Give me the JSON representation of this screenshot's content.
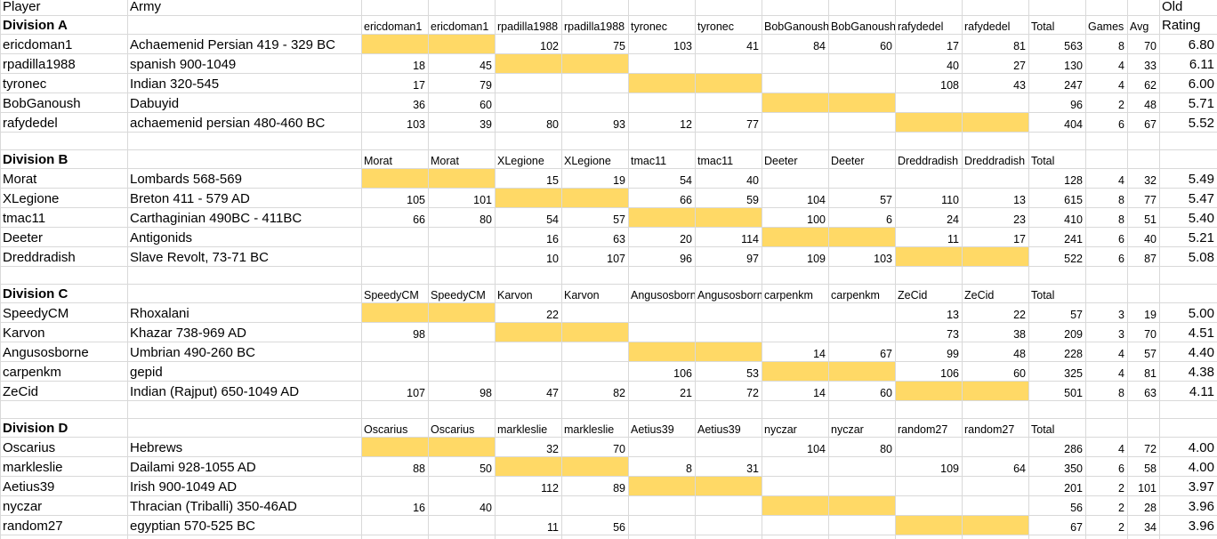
{
  "header": {
    "player": "Player",
    "army": "Army",
    "old": "Old",
    "rating": "Rating"
  },
  "divisions": [
    {
      "name": "Division A",
      "opponents": [
        "ericdoman1",
        "ericdoman1",
        "rpadilla1988",
        "rpadilla1988",
        "tyronec",
        "tyronec",
        "BobGanoush",
        "BobGanoush",
        "rafydedel",
        "rafydedel"
      ],
      "total_header": "Total",
      "games_header": "Games",
      "avg_header": "Avg",
      "players": [
        {
          "name": "ericdoman1",
          "army": "Achaemenid Persian 419 - 329 BC",
          "cells": [
            null,
            null,
            102,
            75,
            103,
            41,
            84,
            60,
            17,
            81
          ],
          "total": 563,
          "games": 8,
          "avg": 70,
          "rating": "6.80"
        },
        {
          "name": "rpadilla1988",
          "army": "spanish 900-1049",
          "cells": [
            18,
            45,
            null,
            null,
            null,
            null,
            null,
            null,
            40,
            27
          ],
          "total": 130,
          "games": 4,
          "avg": 33,
          "rating": "6.11"
        },
        {
          "name": "tyronec",
          "army": "Indian 320-545",
          "cells": [
            17,
            79,
            null,
            null,
            null,
            null,
            null,
            null,
            108,
            43
          ],
          "total": 247,
          "games": 4,
          "avg": 62,
          "rating": "6.00"
        },
        {
          "name": "BobGanoush",
          "army": "Dabuyid",
          "cells": [
            36,
            60,
            null,
            null,
            null,
            null,
            null,
            null,
            null,
            null
          ],
          "total": 96,
          "games": 2,
          "avg": 48,
          "rating": "5.71"
        },
        {
          "name": "rafydedel",
          "army": "achaemenid persian 480-460 BC",
          "cells": [
            103,
            39,
            80,
            93,
            12,
            77,
            null,
            null,
            null,
            null
          ],
          "total": 404,
          "games": 6,
          "avg": 67,
          "rating": "5.52"
        }
      ]
    },
    {
      "name": "Division B",
      "opponents": [
        "Morat",
        "Morat",
        "XLegione",
        "XLegione",
        "tmac11",
        "tmac11",
        "Deeter",
        "Deeter",
        "Dreddradish",
        "Dreddradish"
      ],
      "total_header": "Total",
      "players": [
        {
          "name": "Morat",
          "army": "Lombards 568-569",
          "cells": [
            null,
            null,
            15,
            19,
            54,
            40,
            null,
            null,
            null,
            null
          ],
          "total": 128,
          "games": 4,
          "avg": 32,
          "rating": "5.49"
        },
        {
          "name": "XLegione",
          "army": "Breton 411 - 579 AD",
          "cells": [
            105,
            101,
            null,
            null,
            66,
            59,
            104,
            57,
            110,
            13
          ],
          "total": 615,
          "games": 8,
          "avg": 77,
          "rating": "5.47"
        },
        {
          "name": "tmac11",
          "army": "Carthaginian 490BC - 411BC",
          "cells": [
            66,
            80,
            54,
            57,
            null,
            null,
            100,
            6,
            24,
            23
          ],
          "total": 410,
          "games": 8,
          "avg": 51,
          "rating": "5.40"
        },
        {
          "name": "Deeter",
          "army": "Antigonids",
          "cells": [
            null,
            null,
            16,
            63,
            20,
            114,
            null,
            null,
            11,
            17
          ],
          "total": 241,
          "games": 6,
          "avg": 40,
          "rating": "5.21"
        },
        {
          "name": "Dreddradish",
          "army": "Slave Revolt, 73-71 BC",
          "cells": [
            null,
            null,
            10,
            107,
            96,
            97,
            109,
            103,
            null,
            null
          ],
          "total": 522,
          "games": 6,
          "avg": 87,
          "rating": "5.08"
        }
      ]
    },
    {
      "name": "Division C",
      "opponents": [
        "SpeedyCM",
        "SpeedyCM",
        "Karvon",
        "Karvon",
        "Angusosborne",
        "Angusosborne",
        "carpenkm",
        "carpenkm",
        "ZeCid",
        "ZeCid"
      ],
      "total_header": "Total",
      "players": [
        {
          "name": "SpeedyCM",
          "army": "Rhoxalani",
          "cells": [
            null,
            null,
            22,
            null,
            null,
            null,
            null,
            null,
            13,
            22
          ],
          "total": 57,
          "games": 3,
          "avg": 19,
          "rating": "5.00"
        },
        {
          "name": "Karvon",
          "army": "Khazar 738-969 AD",
          "cells": [
            98,
            null,
            null,
            null,
            null,
            null,
            null,
            null,
            73,
            38
          ],
          "total": 209,
          "games": 3,
          "avg": 70,
          "rating": "4.51"
        },
        {
          "name": "Angusosborne",
          "army": "Umbrian 490-260 BC",
          "cells": [
            null,
            null,
            null,
            null,
            null,
            null,
            14,
            67,
            99,
            48
          ],
          "total": 228,
          "games": 4,
          "avg": 57,
          "rating": "4.40"
        },
        {
          "name": "carpenkm",
          "army": "gepid",
          "cells": [
            null,
            null,
            null,
            null,
            106,
            53,
            null,
            null,
            106,
            60
          ],
          "total": 325,
          "games": 4,
          "avg": 81,
          "rating": "4.38"
        },
        {
          "name": "ZeCid",
          "army": "Indian (Rajput) 650-1049 AD",
          "cells": [
            107,
            98,
            47,
            82,
            21,
            72,
            14,
            60,
            null,
            null
          ],
          "total": 501,
          "games": 8,
          "avg": 63,
          "rating": "4.11"
        }
      ]
    },
    {
      "name": "Division D",
      "opponents": [
        "Oscarius",
        "Oscarius",
        "markleslie",
        "markleslie",
        "Aetius39",
        "Aetius39",
        "nyczar",
        "nyczar",
        "random27",
        "random27"
      ],
      "total_header": "Total",
      "players": [
        {
          "name": "Oscarius",
          "army": "Hebrews",
          "cells": [
            null,
            null,
            32,
            70,
            null,
            null,
            104,
            80,
            null,
            null
          ],
          "total": 286,
          "games": 4,
          "avg": 72,
          "rating": "4.00"
        },
        {
          "name": "markleslie",
          "army": "Dailami 928-1055 AD",
          "cells": [
            88,
            50,
            null,
            null,
            8,
            31,
            null,
            null,
            109,
            64
          ],
          "total": 350,
          "games": 6,
          "avg": 58,
          "rating": "4.00"
        },
        {
          "name": "Aetius39",
          "army": "Irish 900-1049 AD",
          "cells": [
            null,
            null,
            112,
            89,
            null,
            null,
            null,
            null,
            null,
            null
          ],
          "total": 201,
          "games": 2,
          "avg": 101,
          "rating": "3.97"
        },
        {
          "name": "nyczar",
          "army": "Thracian (Triballi) 350-46AD",
          "cells": [
            16,
            40,
            null,
            null,
            null,
            null,
            null,
            null,
            null,
            null
          ],
          "total": 56,
          "games": 2,
          "avg": 28,
          "rating": "3.96"
        },
        {
          "name": "random27",
          "army": "egyptian 570-525 BC",
          "cells": [
            null,
            null,
            11,
            56,
            null,
            null,
            null,
            null,
            null,
            null
          ],
          "total": 67,
          "games": 2,
          "avg": 34,
          "rating": "3.96"
        }
      ]
    }
  ]
}
